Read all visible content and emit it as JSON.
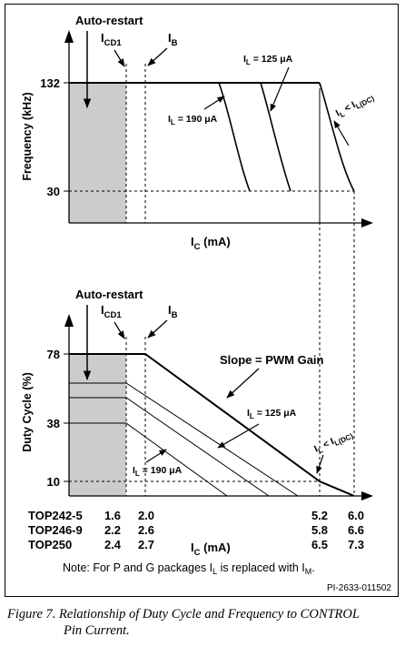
{
  "charts": [
    {
      "type": "line",
      "ylabel": "Frequency (kHz)",
      "xlabel": "I",
      "xlabel_sub": "C",
      "xlabel_unit": " (mA)",
      "autorestart_label": "Auto-restart",
      "icd1_label": "I",
      "icd1_sub": "CD1",
      "ib_label": "I",
      "ib_sub": "B",
      "y_ticks": [
        "132",
        "30"
      ],
      "series_labels": [
        {
          "main": "I",
          "sub": "L",
          "rest": " = 190 μA"
        },
        {
          "main": "I",
          "sub": "L",
          "rest": " = 125 μA"
        },
        {
          "main": "I",
          "sub": "L",
          "rest": " < I",
          "sub2": "L(DC)"
        }
      ]
    },
    {
      "type": "line",
      "ylabel": "Duty Cycle (%)",
      "xlabel": "I",
      "xlabel_sub": "C",
      "xlabel_unit": " (mA)",
      "autorestart_label": "Auto-restart",
      "icd1_label": "I",
      "icd1_sub": "CD1",
      "ib_label": "I",
      "ib_sub": "B",
      "y_ticks": [
        "78",
        "38",
        "10"
      ],
      "slope_label": "Slope = PWM Gain",
      "series_labels": [
        {
          "main": "I",
          "sub": "L",
          "rest": " = 190 μA"
        },
        {
          "main": "I",
          "sub": "L",
          "rest": " = 125 μA"
        },
        {
          "main": "I",
          "sub": "L",
          "rest": " < I",
          "sub2": "L(DC)"
        }
      ]
    }
  ],
  "chart_data": [
    {
      "type": "line",
      "title": "",
      "ylabel": "Frequency (kHz)",
      "xlabel": "IC (mA)",
      "y_ticks": [
        132,
        30
      ],
      "series": [
        {
          "name": "IL = 190 μA",
          "points": [
            [
              2.0,
              132
            ],
            [
              3.0,
              132
            ],
            [
              3.4,
              30
            ]
          ]
        },
        {
          "name": "IL = 125 μA",
          "points": [
            [
              2.0,
              132
            ],
            [
              3.6,
              132
            ],
            [
              4.0,
              30
            ]
          ]
        },
        {
          "name": "IL < IL(DC)",
          "points": [
            [
              2.0,
              132
            ],
            [
              5.2,
              132
            ],
            [
              6.0,
              30
            ]
          ]
        }
      ]
    },
    {
      "type": "line",
      "title": "",
      "ylabel": "Duty Cycle (%)",
      "xlabel": "IC (mA)",
      "y_ticks": [
        78,
        38,
        10
      ],
      "annotation": "Slope = PWM Gain",
      "series": [
        {
          "name": "IL = 190 μA",
          "points": [
            [
              1.6,
              38
            ],
            [
              2.0,
              38
            ],
            [
              3.3,
              10
            ]
          ]
        },
        {
          "name": "IL = 125 μA",
          "points": [
            [
              1.6,
              58
            ],
            [
              2.0,
              58
            ],
            [
              4.4,
              10
            ]
          ]
        },
        {
          "name": "IL < IL(DC)",
          "points": [
            [
              1.6,
              78
            ],
            [
              2.0,
              78
            ],
            [
              5.2,
              10
            ],
            [
              6.0,
              10
            ]
          ]
        }
      ]
    }
  ],
  "x_table": {
    "rows": [
      {
        "device": "TOP242-5",
        "icd1": "1.6",
        "ib": "2.0",
        "v1": "5.2",
        "v2": "6.0"
      },
      {
        "device": "TOP246-9",
        "icd1": "2.2",
        "ib": "2.6",
        "v1": "5.8",
        "v2": "6.6"
      },
      {
        "device": "TOP250",
        "icd1": "2.4",
        "ib": "2.7",
        "v1": "6.5",
        "v2": "7.3"
      }
    ]
  },
  "note": {
    "prefix": "Note: For P and G packages I",
    "sub": "L",
    "middle": " is replaced with I",
    "sub2": "M",
    "suffix": "."
  },
  "part_number": "PI-2633-011502",
  "caption": {
    "line1": "Figure 7. Relationship of Duty Cycle and Frequency to CONTROL",
    "line2": "Pin Current."
  },
  "colors": {
    "shade": "#cccccc",
    "line": "#000000"
  }
}
